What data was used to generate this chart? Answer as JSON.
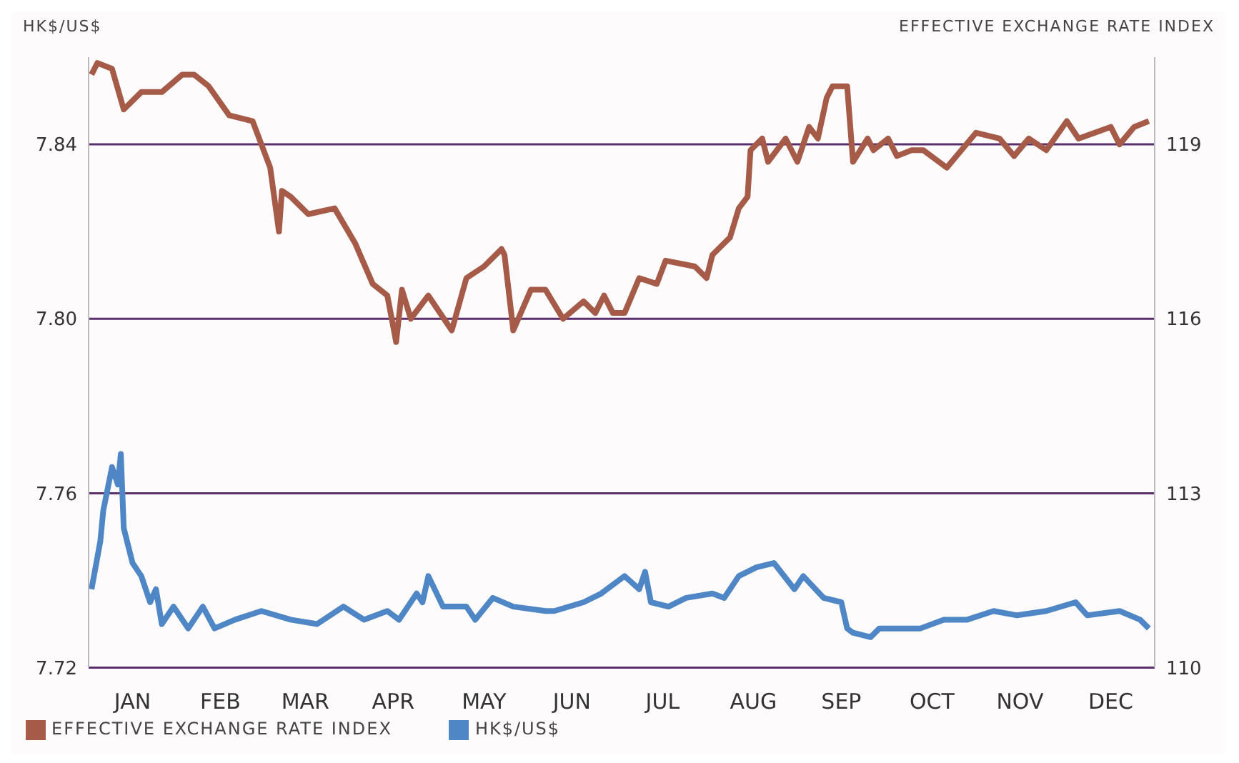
{
  "chart_data": {
    "type": "line",
    "ylabel": "HK$/US$",
    "y2label": "EFFECTIVE EXCHANGE RATE INDEX",
    "xlim": [
      "--01-01",
      "--12-31"
    ],
    "xticks": [
      {
        "value": "--01-16",
        "label": "JAN"
      },
      {
        "value": "--02-15",
        "label": "FEB"
      },
      {
        "value": "--03-16",
        "label": "MAR"
      },
      {
        "value": "--04-15",
        "label": "APR"
      },
      {
        "value": "--05-16",
        "label": "MAY"
      },
      {
        "value": "--06-15",
        "label": "JUN"
      },
      {
        "value": "--07-16",
        "label": "JUL"
      },
      {
        "value": "--08-16",
        "label": "AUG"
      },
      {
        "value": "--09-15",
        "label": "SEP"
      },
      {
        "value": "--10-16",
        "label": "OCT"
      },
      {
        "value": "--11-15",
        "label": "NOV"
      },
      {
        "value": "--12-16",
        "label": "DEC"
      }
    ],
    "ylim": [
      7.72,
      7.86
    ],
    "yticks": [
      7.72,
      7.76,
      {
        "value": 7.8,
        "label": "7.80"
      },
      7.84
    ],
    "y2lim": [
      110,
      120.5
    ],
    "y2ticks": [
      110,
      113,
      116,
      119
    ],
    "grid": "y",
    "legend": "bottom left",
    "series": [
      {
        "name": "EFFECTIVE EXCHANGE RATE INDEX",
        "color": "#a65a48",
        "axis": "y2",
        "x": [
          "--01-02",
          "--01-04",
          "--01-09",
          "--01-13",
          "--01-19",
          "--01-26",
          "--02-02",
          "--02-06",
          "--02-11",
          "--02-18",
          "--02-26",
          "--03-01",
          "--03-04",
          "--03-07",
          "--03-08",
          "--03-11",
          "--03-17",
          "--03-26",
          "--04-02",
          "--04-08",
          "--04-13",
          "--04-16",
          "--04-18",
          "--04-21",
          "--04-27",
          "--05-05",
          "--05-10",
          "--05-16",
          "--05-22",
          "--05-23",
          "--05-26",
          "--06-01",
          "--06-06",
          "--06-12",
          "--06-19",
          "--06-23",
          "--06-26",
          "--06-29",
          "--07-03",
          "--07-08",
          "--07-14",
          "--07-17",
          "--07-27",
          "--07-31",
          "--08-02",
          "--08-08",
          "--08-11",
          "--08-14",
          "--08-15",
          "--08-19",
          "--08-21",
          "--08-27",
          "--08-31",
          "--09-04",
          "--09-07",
          "--09-10",
          "--09-12",
          "--09-17",
          "--09-19",
          "--09-24",
          "--09-26",
          "--10-01",
          "--10-04",
          "--10-09",
          "--10-13",
          "--10-21",
          "--10-26",
          "--10-31",
          "--11-08",
          "--11-13",
          "--11-18",
          "--11-24",
          "--12-01",
          "--12-05",
          "--12-16",
          "--12-19",
          "--12-24",
          "--12-29"
        ],
        "values": [
          120.2,
          120.4,
          120.3,
          119.6,
          119.9,
          119.9,
          120.2,
          120.2,
          120.0,
          119.5,
          119.4,
          119.0,
          118.6,
          117.5,
          118.2,
          118.1,
          117.8,
          117.9,
          117.3,
          116.6,
          116.4,
          115.6,
          116.5,
          116.0,
          116.4,
          115.8,
          116.7,
          116.9,
          117.2,
          117.1,
          115.8,
          116.5,
          116.5,
          116.0,
          116.3,
          116.1,
          116.4,
          116.1,
          116.1,
          116.7,
          116.6,
          117.0,
          116.9,
          116.7,
          117.1,
          117.4,
          117.9,
          118.1,
          118.9,
          119.1,
          118.7,
          119.1,
          118.7,
          119.3,
          119.1,
          119.8,
          120.0,
          120.0,
          118.7,
          119.1,
          118.9,
          119.1,
          118.8,
          118.9,
          118.9,
          118.6,
          118.9,
          119.2,
          119.1,
          118.8,
          119.1,
          118.9,
          119.4,
          119.1,
          119.3,
          119.0,
          119.3,
          119.4
        ]
      },
      {
        "name": "HK$/US$",
        "color": "#4f86c6",
        "x": [
          "--01-02",
          "--01-05",
          "--01-06",
          "--01-09",
          "--01-11",
          "--01-12",
          "--01-13",
          "--01-16",
          "--01-19",
          "--01-22",
          "--01-24",
          "--01-26",
          "--01-30",
          "--02-04",
          "--02-09",
          "--02-13",
          "--02-20",
          "--03-01",
          "--03-11",
          "--03-20",
          "--03-29",
          "--04-05",
          "--04-13",
          "--04-17",
          "--04-23",
          "--04-25",
          "--04-27",
          "--05-02",
          "--05-10",
          "--05-13",
          "--05-19",
          "--05-26",
          "--06-06",
          "--06-09",
          "--06-19",
          "--06-25",
          "--07-03",
          "--07-08",
          "--07-10",
          "--07-12",
          "--07-18",
          "--07-24",
          "--08-02",
          "--08-06",
          "--08-11",
          "--08-17",
          "--08-23",
          "--08-30",
          "--09-02",
          "--09-09",
          "--09-15",
          "--09-17",
          "--09-19",
          "--09-25",
          "--09-28",
          "--10-07",
          "--10-12",
          "--10-20",
          "--10-28",
          "--11-06",
          "--11-14",
          "--11-24",
          "--12-04",
          "--12-08",
          "--12-19",
          "--12-26",
          "--12-29"
        ],
        "values": [
          7.738,
          7.749,
          7.756,
          7.766,
          7.762,
          7.769,
          7.752,
          7.744,
          7.741,
          7.735,
          7.738,
          7.73,
          7.734,
          7.729,
          7.734,
          7.729,
          7.731,
          7.733,
          7.731,
          7.73,
          7.734,
          7.731,
          7.733,
          7.731,
          7.737,
          7.735,
          7.741,
          7.734,
          7.734,
          7.731,
          7.736,
          7.734,
          7.733,
          7.733,
          7.735,
          7.737,
          7.741,
          7.738,
          7.742,
          7.735,
          7.734,
          7.736,
          7.737,
          7.736,
          7.741,
          7.743,
          7.744,
          7.738,
          7.741,
          7.736,
          7.735,
          7.729,
          7.728,
          7.727,
          7.729,
          7.729,
          7.729,
          7.731,
          7.731,
          7.733,
          7.732,
          7.733,
          7.735,
          7.732,
          7.733,
          7.731,
          7.729
        ]
      }
    ]
  }
}
